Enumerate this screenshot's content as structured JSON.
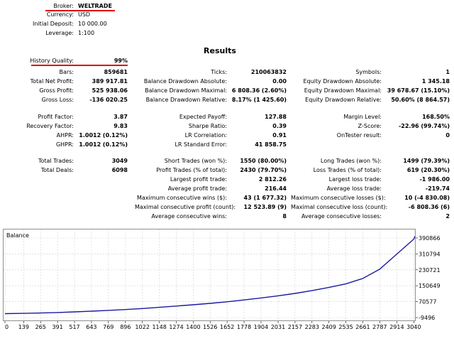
{
  "header": {
    "broker_label": "Broker:",
    "broker_value": "WELTRADE",
    "currency_label": "Currency:",
    "currency_value": "USD",
    "deposit_label": "Initial Deposit:",
    "deposit_value": "10 000.00",
    "leverage_label": "Leverage:",
    "leverage_value": "1:100"
  },
  "results": {
    "title": "Results",
    "history_quality_label": "History Quality:",
    "history_quality_value": "99%",
    "col1": [
      {
        "label": "Bars:",
        "value": "859681"
      },
      {
        "label": "Total Net Profit:",
        "value": "389 917.81"
      },
      {
        "label": "Gross Profit:",
        "value": "525 938.06"
      },
      {
        "label": "Gross Loss:",
        "value": "-136 020.25"
      },
      {
        "label": "Profit Factor:",
        "value": "3.87"
      },
      {
        "label": "Recovery Factor:",
        "value": "9.83"
      },
      {
        "label": "AHPR:",
        "value": "1.0012 (0.12%)"
      },
      {
        "label": "GHPR:",
        "value": "1.0012 (0.12%)"
      },
      {
        "label": "Total Trades:",
        "value": "3049"
      },
      {
        "label": "Total Deals:",
        "value": "6098"
      }
    ],
    "col2": [
      {
        "label": "Ticks:",
        "value": "210063832"
      },
      {
        "label": "Balance Drawdown Absolute:",
        "value": "0.00"
      },
      {
        "label": "Balance Drawdown Maximal:",
        "value": "6 808.36 (2.60%)"
      },
      {
        "label": "Balance Drawdown Relative:",
        "value": "8.17% (1 425.60)"
      },
      {
        "label": "Expected Payoff:",
        "value": "127.88"
      },
      {
        "label": "Sharpe Ratio:",
        "value": "0.39"
      },
      {
        "label": "LR Correlation:",
        "value": "0.91"
      },
      {
        "label": "LR Standard Error:",
        "value": "41 858.75"
      },
      {
        "label": "Short Trades (won %):",
        "value": "1550 (80.00%)"
      },
      {
        "label": "Profit Trades (% of total):",
        "value": "2430 (79.70%)"
      },
      {
        "label": "Largest profit trade:",
        "value": "2 812.26"
      },
      {
        "label": "Average profit trade:",
        "value": "216.44"
      },
      {
        "label": "Maximum consecutive wins ($):",
        "value": "43 (1 677.32)"
      },
      {
        "label": "Maximal consecutive profit (count):",
        "value": "12 523.89 (9)"
      },
      {
        "label": "Average consecutive wins:",
        "value": "8"
      }
    ],
    "col3": [
      {
        "label": "Symbols:",
        "value": "1"
      },
      {
        "label": "Equity Drawdown Absolute:",
        "value": "1 345.18"
      },
      {
        "label": "Equity Drawdown Maximal:",
        "value": "39 678.67 (15.10%)"
      },
      {
        "label": "Equity Drawdown Relative:",
        "value": "50.60% (8 864.57)"
      },
      {
        "label": "Margin Level:",
        "value": "168.50%"
      },
      {
        "label": "Z-Score:",
        "value": "-22.96 (99.74%)"
      },
      {
        "label": "OnTester result:",
        "value": "0"
      },
      {
        "label": "Long Trades (won %):",
        "value": "1499 (79.39%)"
      },
      {
        "label": "Loss Trades (% of total):",
        "value": "619 (20.30%)"
      },
      {
        "label": "Largest loss trade:",
        "value": "-1 986.00"
      },
      {
        "label": "Average loss trade:",
        "value": "-219.74"
      },
      {
        "label": "Maximum consecutive losses ($):",
        "value": "10 (-4 830.08)"
      },
      {
        "label": "Maximal consecutive loss (count):",
        "value": "-6 808.36 (6)"
      },
      {
        "label": "Average consecutive losses:",
        "value": "2"
      }
    ]
  },
  "chart_data": {
    "type": "line",
    "title": "Balance",
    "line_color": "#1a1aa0",
    "x_ticks": [
      "0",
      "139",
      "265",
      "391",
      "517",
      "643",
      "769",
      "896",
      "1022",
      "1148",
      "1274",
      "1400",
      "1526",
      "1652",
      "1778",
      "1904",
      "2031",
      "2157",
      "2283",
      "2409",
      "2535",
      "2661",
      "2787",
      "2914",
      "3040"
    ],
    "y_ticks": [
      "390866",
      "310794",
      "230721",
      "150649",
      "70577",
      "-9496"
    ],
    "xlim": [
      0,
      3049
    ],
    "ylim": [
      -9496,
      390866
    ],
    "grid": true,
    "series": [
      {
        "x": [
          0,
          139,
          265,
          391,
          517,
          643,
          769,
          896,
          1022,
          1148,
          1274,
          1400,
          1526,
          1652,
          1778,
          1904,
          2031,
          2157,
          2283,
          2409,
          2535,
          2661,
          2787,
          2914,
          3040,
          3049
        ],
        "y": [
          10000,
          11500,
          13500,
          16000,
          19000,
          22500,
          26500,
          31000,
          36000,
          42000,
          48500,
          55000,
          62000,
          70000,
          79000,
          89000,
          100000,
          112000,
          126000,
          142000,
          160000,
          187000,
          234000,
          310000,
          385000,
          399918
        ]
      }
    ]
  }
}
